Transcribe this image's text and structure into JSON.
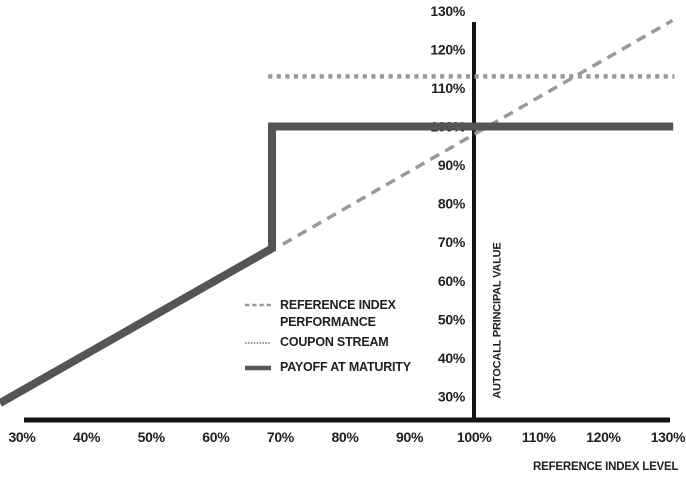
{
  "chart_data": {
    "type": "line",
    "title": "",
    "xlabel": "REFERENCE INDEX LEVEL",
    "ylabel": "AUTOCALL PRINCIPAL VALUE",
    "xlim": [
      26.5,
      131
    ],
    "ylim": [
      26,
      132
    ],
    "grid": false,
    "legend_position": "center-left",
    "axis_color": "#141414",
    "text_color": "#1f1f1f",
    "x_ticks": [
      {
        "value": 30,
        "label": "30%"
      },
      {
        "value": 40,
        "label": "40%"
      },
      {
        "value": 50,
        "label": "50%"
      },
      {
        "value": 60,
        "label": "60%"
      },
      {
        "value": 70,
        "label": "70%"
      },
      {
        "value": 80,
        "label": "80%"
      },
      {
        "value": 90,
        "label": "90%"
      },
      {
        "value": 100,
        "label": "100%"
      },
      {
        "value": 110,
        "label": "110%"
      },
      {
        "value": 120,
        "label": "120%"
      },
      {
        "value": 130,
        "label": "130%"
      }
    ],
    "y_ticks": [
      {
        "value": 30,
        "label": "30%"
      },
      {
        "value": 40,
        "label": "40%"
      },
      {
        "value": 50,
        "label": "50%"
      },
      {
        "value": 60,
        "label": "60%"
      },
      {
        "value": 70,
        "label": "70%"
      },
      {
        "value": 80,
        "label": "80%"
      },
      {
        "value": 90,
        "label": "90%"
      },
      {
        "value": 100,
        "label": "100%"
      },
      {
        "value": 110,
        "label": "110%"
      },
      {
        "value": 120,
        "label": "120%"
      },
      {
        "value": 130,
        "label": "130%"
      }
    ],
    "series": [
      {
        "id": "reference-index-performance",
        "name": "REFERENCE INDEX PERFORMANCE",
        "style": "dashed",
        "color": "#999999",
        "width": 3.5,
        "points": [
          [
            70.4,
            69.5
          ],
          [
            130.7,
            127.5
          ]
        ]
      },
      {
        "id": "coupon-stream",
        "name": "COUPON STREAM",
        "style": "dotted",
        "color": "#999999",
        "width": 4.5,
        "points": [
          [
            68.1,
            113
          ],
          [
            131,
            113
          ]
        ]
      },
      {
        "id": "payoff-at-maturity",
        "name": "PAYOFF AT MATURITY",
        "style": "solid",
        "color": "#555555",
        "width": 8,
        "points": [
          [
            26.6,
            28.3
          ],
          [
            68.7,
            68.4
          ],
          [
            68.7,
            100
          ],
          [
            130.8,
            100
          ]
        ]
      }
    ]
  },
  "legend": {
    "items": [
      {
        "line1": "REFERENCE INDEX",
        "line2": "PERFORMANCE",
        "style": "dashed"
      },
      {
        "line1": "COUPON STREAM",
        "style": "dotted"
      },
      {
        "line1": "PAYOFF AT MATURITY",
        "style": "solid"
      }
    ]
  }
}
